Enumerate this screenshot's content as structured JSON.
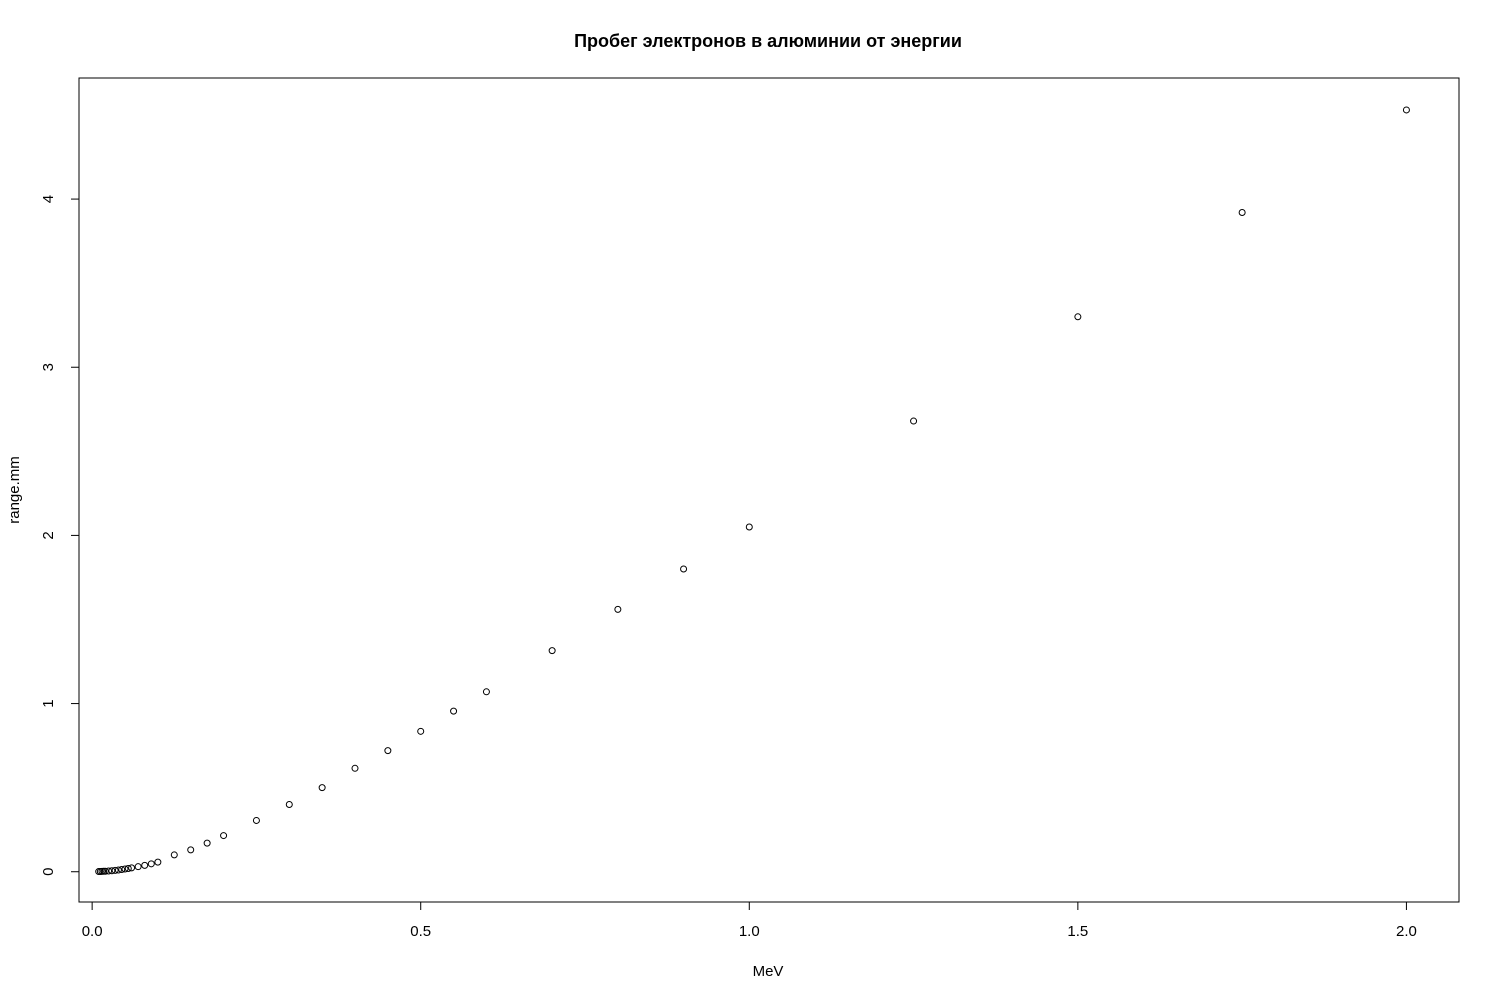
{
  "chart_data": {
    "type": "scatter",
    "title": "Пробег электронов в алюминии от энергии",
    "xlabel": "MeV",
    "ylabel": "range.mm",
    "xlim": [
      -0.02,
      2.08
    ],
    "ylim": [
      -0.18,
      4.72
    ],
    "x_ticks": [
      0.0,
      0.5,
      1.0,
      1.5,
      2.0
    ],
    "x_tick_labels": [
      "0.0",
      "0.5",
      "1.0",
      "1.5",
      "2.0"
    ],
    "y_ticks": [
      0,
      1,
      2,
      3,
      4
    ],
    "y_tick_labels": [
      "0",
      "1",
      "2",
      "3",
      "4"
    ],
    "grid": false,
    "points": {
      "x": [
        0.01,
        0.0125,
        0.015,
        0.0175,
        0.02,
        0.025,
        0.03,
        0.035,
        0.04,
        0.045,
        0.05,
        0.055,
        0.06,
        0.07,
        0.08,
        0.09,
        0.1,
        0.125,
        0.15,
        0.175,
        0.2,
        0.25,
        0.3,
        0.35,
        0.4,
        0.45,
        0.5,
        0.55,
        0.6,
        0.7,
        0.8,
        0.9,
        1.0,
        1.25,
        1.5,
        1.75,
        2.0
      ],
      "y": [
        0.001,
        0.0015,
        0.002,
        0.0025,
        0.003,
        0.0045,
        0.006,
        0.008,
        0.01,
        0.013,
        0.016,
        0.019,
        0.023,
        0.03,
        0.038,
        0.047,
        0.057,
        0.1,
        0.13,
        0.17,
        0.215,
        0.305,
        0.4,
        0.5,
        0.615,
        0.72,
        0.835,
        0.955,
        1.07,
        1.315,
        1.56,
        1.8,
        2.05,
        2.68,
        3.3,
        3.92,
        4.53
      ]
    }
  }
}
